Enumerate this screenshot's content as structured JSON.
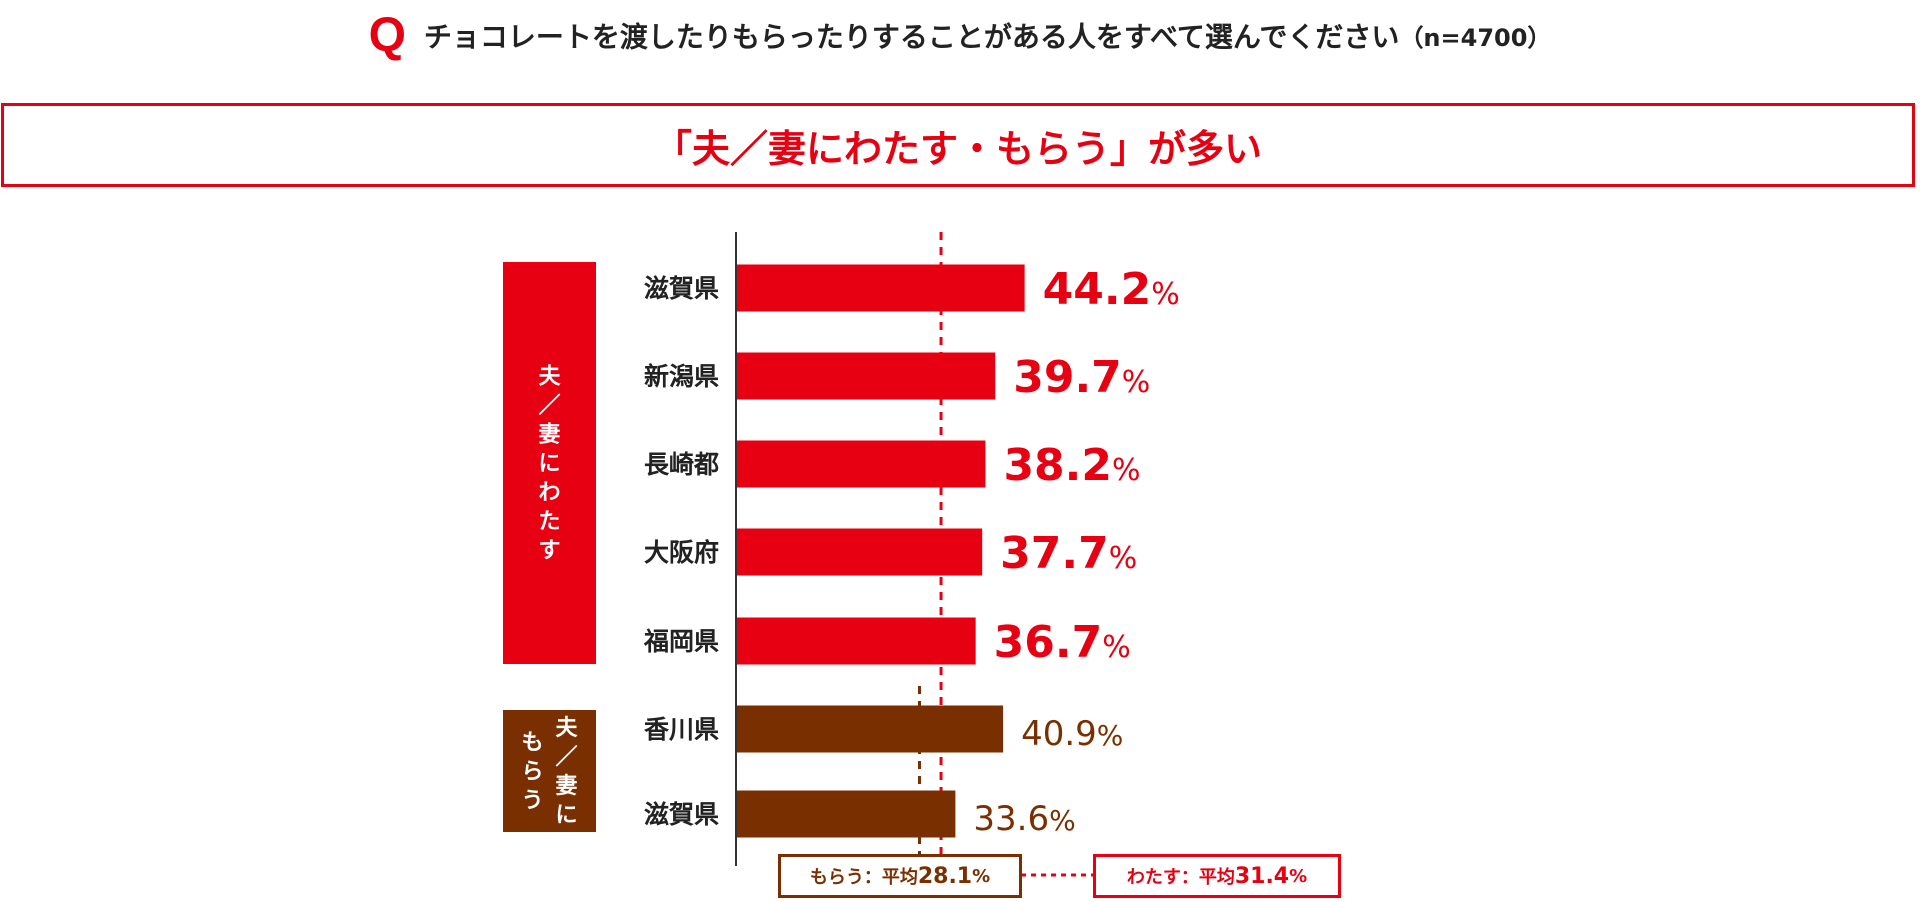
{
  "question": {
    "mark": "Q",
    "text": "チョコレートを渡したりもらったりすることがある人をすべて選んでください",
    "sample": "（n=4700）"
  },
  "headline": "「夫／妻にわたす・もらう」が多い",
  "colors": {
    "give": "#e60012",
    "receive": "#7a2f00",
    "axis": "#333333"
  },
  "chart_data": {
    "type": "bar",
    "orientation": "horizontal",
    "xlim": [
      0,
      100
    ],
    "groups": [
      {
        "name": "夫／妻にわたす",
        "label_lines": [
          "夫／妻にわたす"
        ],
        "color": "#e60012",
        "bold_values": true,
        "categories": [
          "滋賀県",
          "新潟県",
          "長崎都",
          "大阪府",
          "福岡県"
        ],
        "values": [
          44.2,
          39.7,
          38.2,
          37.7,
          36.7
        ]
      },
      {
        "name": "夫／妻にもらう",
        "label_lines": [
          "夫／妻に",
          "もらう"
        ],
        "color": "#7a2f00",
        "bold_values": false,
        "categories": [
          "香川県",
          "滋賀県"
        ],
        "values": [
          40.9,
          33.6
        ]
      }
    ],
    "value_suffix": "%",
    "reference_lines": [
      {
        "name": "わたす",
        "label": "わたす：平均",
        "value": 31.4,
        "color": "#e60012"
      },
      {
        "name": "もらう",
        "label": "もらう：平均",
        "value": 28.1,
        "color": "#7a2f00"
      }
    ]
  }
}
